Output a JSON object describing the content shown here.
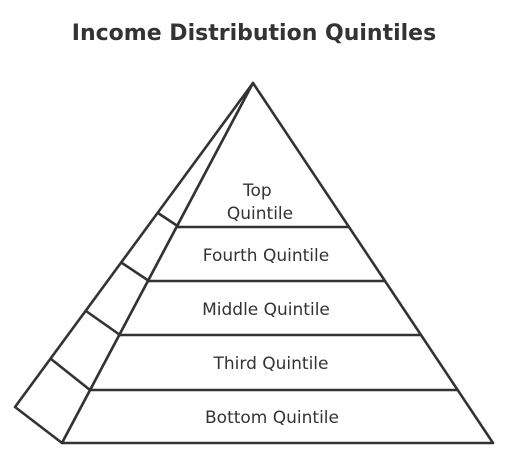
{
  "title": "Income Distribution Quintiles",
  "levels": [
    {
      "id": "top",
      "lines": [
        "Top",
        "Quintile"
      ]
    },
    {
      "id": "fourth",
      "lines": [
        "Fourth Quintile"
      ]
    },
    {
      "id": "middle",
      "lines": [
        "Middle Quintile"
      ]
    },
    {
      "id": "third",
      "lines": [
        "Third Quintile"
      ]
    },
    {
      "id": "bottom",
      "lines": [
        "Bottom Quintile"
      ]
    }
  ]
}
